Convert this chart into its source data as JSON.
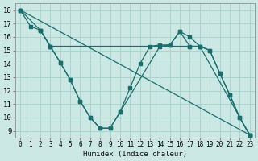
{
  "xlabel": "Humidex (Indice chaleur)",
  "background_color": "#cce8e4",
  "grid_color": "#aad4cc",
  "line_color": "#1a6e6e",
  "xlim": [
    -0.5,
    23.5
  ],
  "ylim": [
    8.5,
    18.5
  ],
  "xticks": [
    0,
    1,
    2,
    3,
    4,
    5,
    6,
    7,
    8,
    9,
    10,
    11,
    12,
    13,
    14,
    15,
    16,
    17,
    18,
    19,
    20,
    21,
    22,
    23
  ],
  "yticks": [
    9,
    10,
    11,
    12,
    13,
    14,
    15,
    16,
    17,
    18
  ],
  "line1_straight": {
    "x": [
      0,
      23
    ],
    "y": [
      18.0,
      8.7
    ]
  },
  "line2_gently_declining": {
    "x": [
      0,
      2,
      3,
      17,
      18,
      19,
      20,
      21,
      22,
      23
    ],
    "y": [
      18.0,
      16.5,
      15.3,
      15.3,
      15.3,
      15.0,
      13.3,
      11.7,
      10.0,
      8.7
    ]
  },
  "line3_zigzag": {
    "comment": "main zigzag line: 0,18 -> 1,16.8 -> 3,15.3 -> 4,14.1 -> 5,12.8 -> 6,11.2 -> 7,10.0 -> 8,9.2 -> 9,9.2 -> 10,10.4 -> 11,12.2 -> 12,14.0 -> 13,15.3 -> 14,15.4 -> 15,15.4 -> 16,16.4 -> 17,16.0 -> 18,15.3 -> 19,15.0 -> 20,13.3 -> 21,11.7 -> 22,10.0 -> 23,8.7",
    "x": [
      0,
      1,
      2,
      3,
      4,
      5,
      6,
      7,
      8,
      9,
      10,
      11,
      12,
      13,
      14,
      15,
      16,
      17,
      18,
      19,
      20,
      21,
      22,
      23
    ],
    "y": [
      18.0,
      16.8,
      16.5,
      15.3,
      14.1,
      12.8,
      11.2,
      10.0,
      9.2,
      9.2,
      10.4,
      12.2,
      14.0,
      15.3,
      15.4,
      15.4,
      16.4,
      16.0,
      15.3,
      15.0,
      13.3,
      11.7,
      10.0,
      8.7
    ]
  },
  "line4_v_shape": {
    "comment": "V shape: 2,16.5 -> 3,15.3 -> 5,12.8 -> 6,11.2 -> 7,10.0 -> 8,9.2 -> 9,9.2 -> 10,10.4 -> then up to 15,15.4 -> 16,16.4 -> 17,15.3 -> 18,15.3 -> 23,8.7",
    "x": [
      2,
      3,
      4,
      5,
      6,
      7,
      8,
      9,
      10,
      14,
      15,
      16,
      17,
      18,
      23
    ],
    "y": [
      16.5,
      15.3,
      14.1,
      12.8,
      11.2,
      10.0,
      9.2,
      9.2,
      10.4,
      15.3,
      15.4,
      16.4,
      15.3,
      15.3,
      8.7
    ]
  }
}
